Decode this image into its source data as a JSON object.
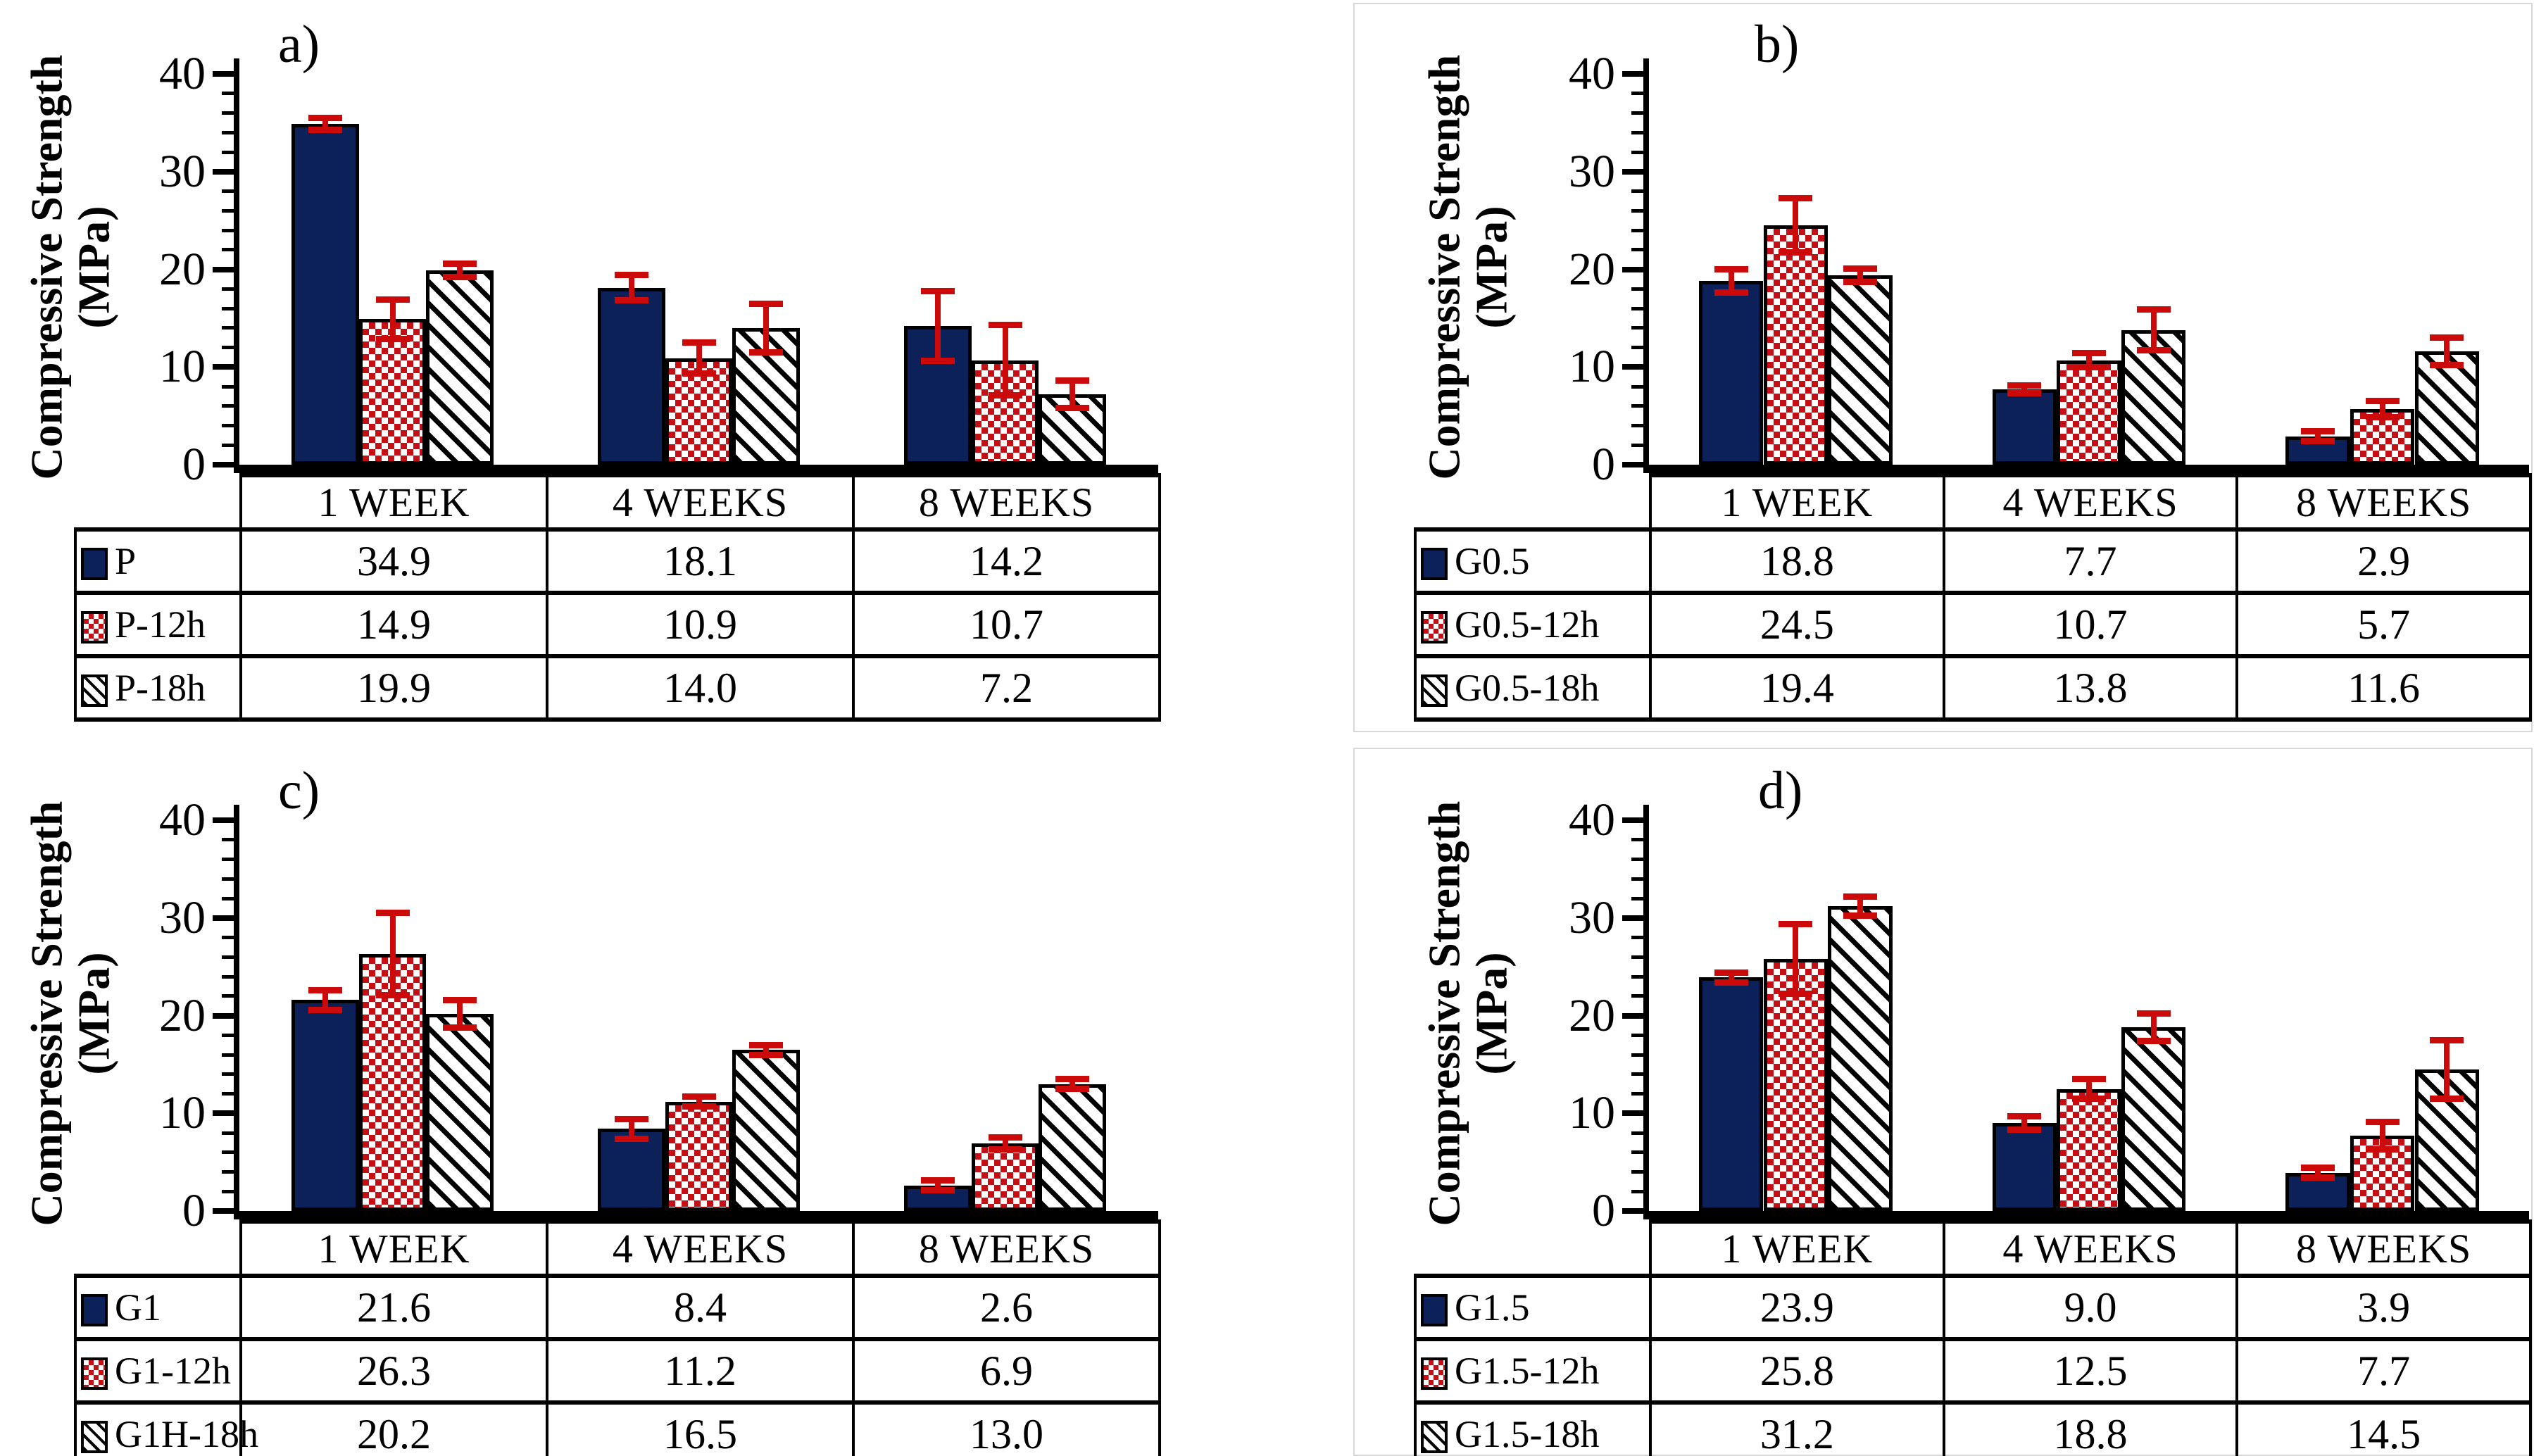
{
  "styles": {
    "navy": "#0c2059",
    "pattern_red": "#c50f14",
    "error_red": "#cd0a0a",
    "line_black": "#000000",
    "frame_gray": "#d8d8d8"
  },
  "chart_data": [
    {
      "panel_label": "a)",
      "type": "bar",
      "ylabel_line1": "Compressive Strength",
      "ylabel_line2": "(MPa)",
      "ylim": [
        0,
        40
      ],
      "yticks": [
        0,
        10,
        20,
        30,
        40
      ],
      "minor_tick_step": 2,
      "grid": "off",
      "legend_position": "table-left-column",
      "categories": [
        "1 WEEK",
        "4 WEEKS",
        "8 WEEKS"
      ],
      "series": [
        {
          "name": "P",
          "pattern": "navy-solid",
          "values": [
            34.9,
            18.1,
            14.2
          ],
          "values_display": [
            "34.9",
            "18.1",
            "14.2"
          ],
          "errors": [
            0.6,
            1.3,
            3.6
          ]
        },
        {
          "name": "P-12h",
          "pattern": "red-checker",
          "values": [
            14.9,
            10.9,
            10.7
          ],
          "values_display": [
            "14.9",
            "10.9",
            "10.7"
          ],
          "errors": [
            2.0,
            1.6,
            3.6
          ]
        },
        {
          "name": "P-18h",
          "pattern": "black-hatch",
          "values": [
            19.9,
            14.0,
            7.2
          ],
          "values_display": [
            "19.9",
            "14.0",
            "7.2"
          ],
          "errors": [
            0.7,
            2.5,
            1.4
          ]
        }
      ]
    },
    {
      "panel_label": "b)",
      "type": "bar",
      "ylabel_line1": "Compressive Strength",
      "ylabel_line2": "(MPa)",
      "ylim": [
        0,
        40
      ],
      "yticks": [
        0,
        10,
        20,
        30,
        40
      ],
      "minor_tick_step": 2,
      "grid": "off",
      "legend_position": "table-left-column",
      "categories": [
        "1 WEEK",
        "4 WEEKS",
        "8 WEEKS"
      ],
      "series": [
        {
          "name": "G0.5",
          "pattern": "navy-solid",
          "values": [
            18.8,
            7.7,
            2.9
          ],
          "values_display": [
            "18.8",
            "7.7",
            "2.9"
          ],
          "errors": [
            1.2,
            0.4,
            0.5
          ]
        },
        {
          "name": "G0.5-12h",
          "pattern": "red-checker",
          "values": [
            24.5,
            10.7,
            5.7
          ],
          "values_display": [
            "24.5",
            "10.7",
            "5.7"
          ],
          "errors": [
            2.8,
            0.7,
            0.8
          ]
        },
        {
          "name": "G0.5-18h",
          "pattern": "black-hatch",
          "values": [
            19.4,
            13.8,
            11.6
          ],
          "values_display": [
            "19.4",
            "13.8",
            "11.6"
          ],
          "errors": [
            0.7,
            2.1,
            1.4
          ]
        }
      ]
    },
    {
      "panel_label": "c)",
      "type": "bar",
      "ylabel_line1": "Compressive Strength",
      "ylabel_line2": "(MPa)",
      "ylim": [
        0,
        40
      ],
      "yticks": [
        0,
        10,
        20,
        30,
        40
      ],
      "minor_tick_step": 2,
      "grid": "off",
      "legend_position": "table-left-column",
      "categories": [
        "1 WEEK",
        "4 WEEKS",
        "8 WEEKS"
      ],
      "series": [
        {
          "name": "G1",
          "pattern": "navy-solid",
          "values": [
            21.6,
            8.4,
            2.6
          ],
          "values_display": [
            "21.6",
            "8.4",
            "2.6"
          ],
          "errors": [
            1.0,
            1.0,
            0.5
          ]
        },
        {
          "name": "G1-12h",
          "pattern": "red-checker",
          "values": [
            26.3,
            11.2,
            6.9
          ],
          "values_display": [
            "26.3",
            "11.2",
            "6.9"
          ],
          "errors": [
            4.2,
            0.5,
            0.6
          ]
        },
        {
          "name": "G1H-18h",
          "pattern": "black-hatch",
          "values": [
            20.2,
            16.5,
            13.0
          ],
          "values_display": [
            "20.2",
            "16.5",
            "13.0"
          ],
          "errors": [
            1.4,
            0.5,
            0.5
          ]
        }
      ]
    },
    {
      "panel_label": "d)",
      "type": "bar",
      "ylabel_line1": "Compressive Strength",
      "ylabel_line2": "(MPa)",
      "ylim": [
        0,
        40
      ],
      "yticks": [
        0,
        10,
        20,
        30,
        40
      ],
      "minor_tick_step": 2,
      "grid": "off",
      "legend_position": "table-left-column",
      "categories": [
        "1 WEEK",
        "4 WEEKS",
        "8 WEEKS"
      ],
      "series": [
        {
          "name": "G1.5",
          "pattern": "navy-solid",
          "values": [
            23.9,
            9.0,
            3.9
          ],
          "values_display": [
            "23.9",
            "9.0",
            "3.9"
          ],
          "errors": [
            0.5,
            0.7,
            0.5
          ]
        },
        {
          "name": "G1.5-12h",
          "pattern": "red-checker",
          "values": [
            25.8,
            12.5,
            7.7
          ],
          "values_display": [
            "25.8",
            "12.5",
            "7.7"
          ],
          "errors": [
            3.6,
            1.0,
            1.4
          ]
        },
        {
          "name": "G1.5-18h",
          "pattern": "black-hatch",
          "values": [
            31.2,
            18.8,
            14.5
          ],
          "values_display": [
            "31.2",
            "18.8",
            "14.5"
          ],
          "errors": [
            1.0,
            1.4,
            3.0
          ]
        }
      ]
    }
  ]
}
